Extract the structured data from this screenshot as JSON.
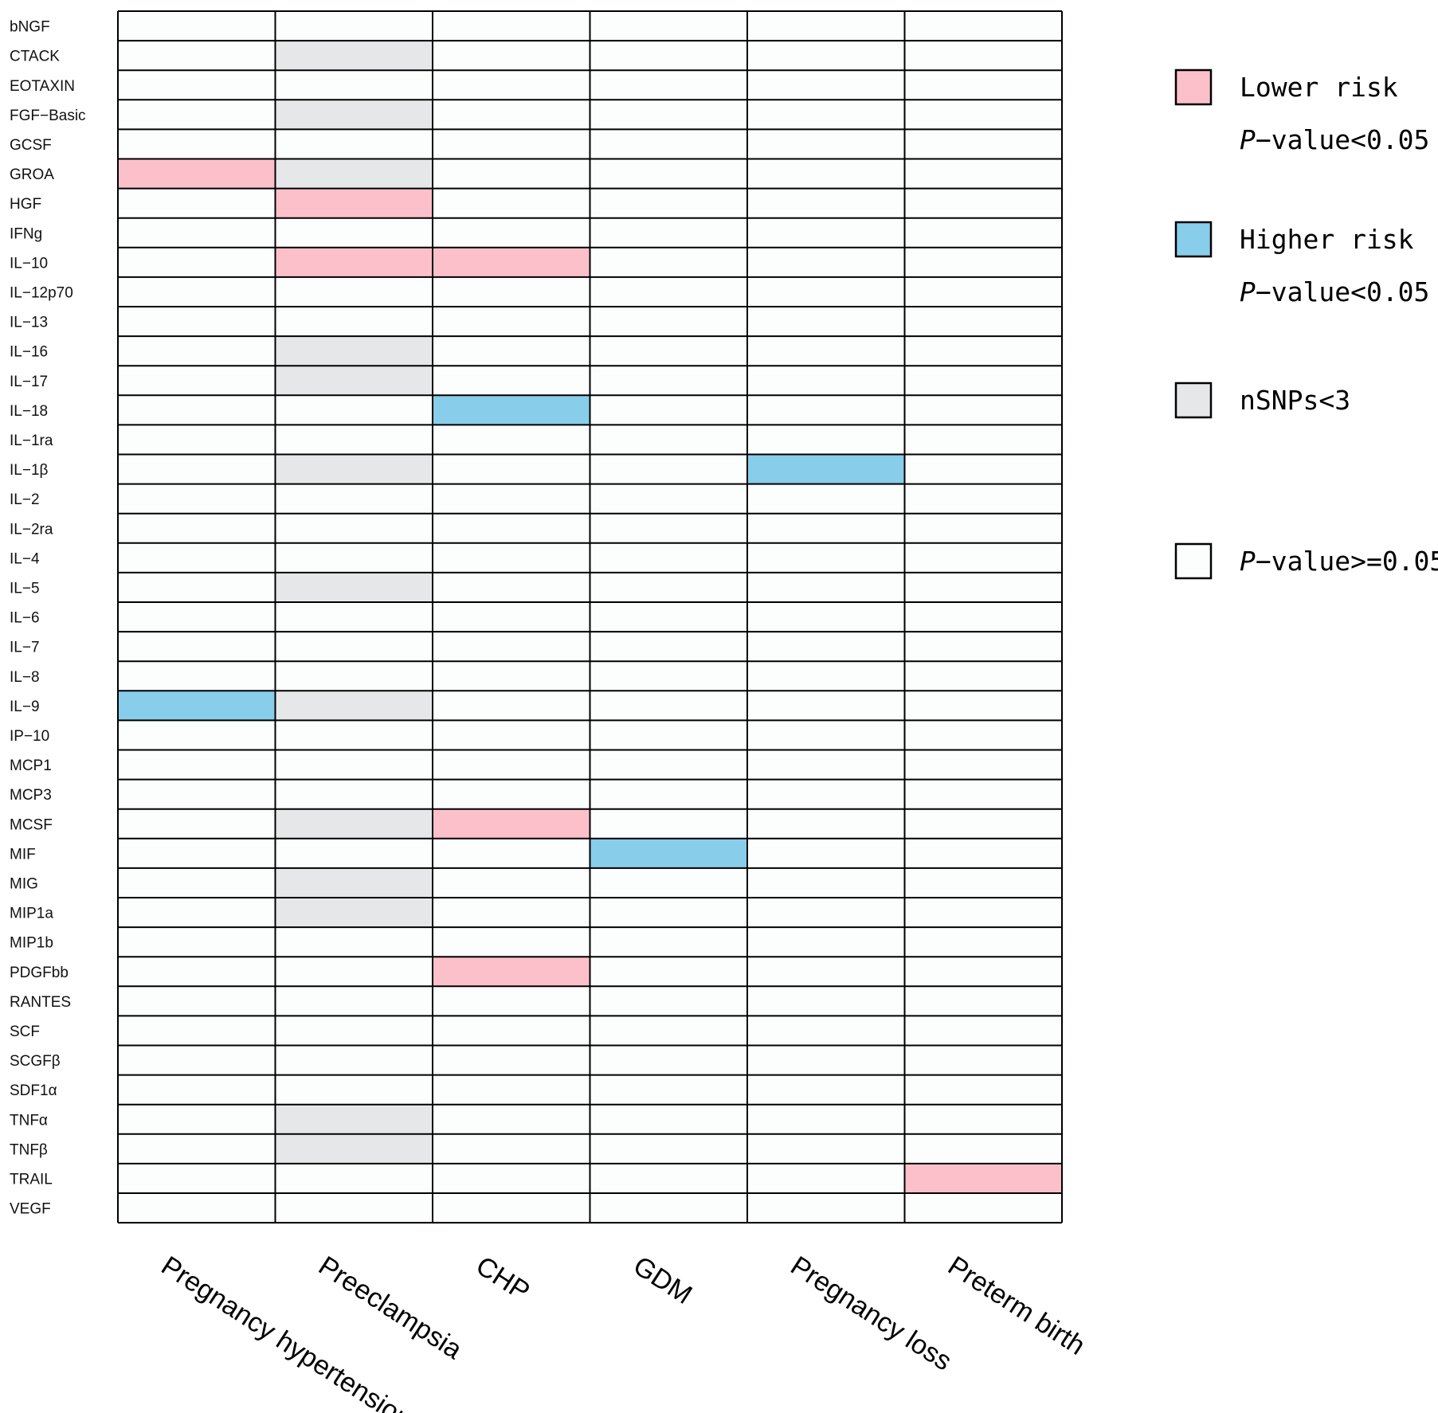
{
  "chart_data": {
    "type": "heatmap",
    "title": "",
    "columns": [
      "Pregnancy hypertension",
      "Preeclampsia",
      "CHP",
      "GDM",
      "Pregnancy loss",
      "Preterm birth"
    ],
    "rows": [
      "bNGF",
      "CTACK",
      "EOTAXIN",
      "FGF−Basic",
      "GCSF",
      "GROA",
      "HGF",
      "IFNg",
      "IL−10",
      "IL−12p70",
      "IL−13",
      "IL−16",
      "IL−17",
      "IL−18",
      "IL−1ra",
      "IL−1β",
      "IL−2",
      "IL−2ra",
      "IL−4",
      "IL−5",
      "IL−6",
      "IL−7",
      "IL−8",
      "IL−9",
      "IP−10",
      "MCP1",
      "MCP3",
      "MCSF",
      "MIF",
      "MIG",
      "MIP1a",
      "MIP1b",
      "PDGFbb",
      "RANTES",
      "SCF",
      "SCGFβ",
      "SDF1α",
      "TNFα",
      "TNFβ",
      "TRAIL",
      "VEGF"
    ],
    "category_codes": {
      "0": "P-value>=0.05",
      "1": "Lower risk P-value<0.05",
      "2": "Higher risk P-value<0.05",
      "3": "nSNPs<3"
    },
    "values": [
      [
        0,
        0,
        0,
        0,
        0,
        0
      ],
      [
        0,
        3,
        0,
        0,
        0,
        0
      ],
      [
        0,
        0,
        0,
        0,
        0,
        0
      ],
      [
        0,
        3,
        0,
        0,
        0,
        0
      ],
      [
        0,
        0,
        0,
        0,
        0,
        0
      ],
      [
        1,
        3,
        0,
        0,
        0,
        0
      ],
      [
        0,
        1,
        0,
        0,
        0,
        0
      ],
      [
        0,
        0,
        0,
        0,
        0,
        0
      ],
      [
        0,
        1,
        1,
        0,
        0,
        0
      ],
      [
        0,
        0,
        0,
        0,
        0,
        0
      ],
      [
        0,
        0,
        0,
        0,
        0,
        0
      ],
      [
        0,
        3,
        0,
        0,
        0,
        0
      ],
      [
        0,
        3,
        0,
        0,
        0,
        0
      ],
      [
        0,
        0,
        2,
        0,
        0,
        0
      ],
      [
        0,
        0,
        0,
        0,
        0,
        0
      ],
      [
        0,
        3,
        0,
        0,
        2,
        0
      ],
      [
        0,
        0,
        0,
        0,
        0,
        0
      ],
      [
        0,
        0,
        0,
        0,
        0,
        0
      ],
      [
        0,
        0,
        0,
        0,
        0,
        0
      ],
      [
        0,
        3,
        0,
        0,
        0,
        0
      ],
      [
        0,
        0,
        0,
        0,
        0,
        0
      ],
      [
        0,
        0,
        0,
        0,
        0,
        0
      ],
      [
        0,
        0,
        0,
        0,
        0,
        0
      ],
      [
        2,
        3,
        0,
        0,
        0,
        0
      ],
      [
        0,
        0,
        0,
        0,
        0,
        0
      ],
      [
        0,
        0,
        0,
        0,
        0,
        0
      ],
      [
        0,
        0,
        0,
        0,
        0,
        0
      ],
      [
        0,
        3,
        1,
        0,
        0,
        0
      ],
      [
        0,
        0,
        0,
        2,
        0,
        0
      ],
      [
        0,
        3,
        0,
        0,
        0,
        0
      ],
      [
        0,
        3,
        0,
        0,
        0,
        0
      ],
      [
        0,
        0,
        0,
        0,
        0,
        0
      ],
      [
        0,
        0,
        1,
        0,
        0,
        0
      ],
      [
        0,
        0,
        0,
        0,
        0,
        0
      ],
      [
        0,
        0,
        0,
        0,
        0,
        0
      ],
      [
        0,
        0,
        0,
        0,
        0,
        0
      ],
      [
        0,
        0,
        0,
        0,
        0,
        0
      ],
      [
        0,
        3,
        0,
        0,
        0,
        0
      ],
      [
        0,
        3,
        0,
        0,
        0,
        0
      ],
      [
        0,
        0,
        0,
        0,
        0,
        1
      ],
      [
        0,
        0,
        0,
        0,
        0,
        0
      ]
    ],
    "colors": {
      "0": "#fcfdfd",
      "1": "#fcc0cb",
      "2": "#88cdea",
      "3": "#e6e7e8"
    },
    "legend": [
      {
        "code": 1,
        "label": "Lower risk",
        "sublabel_prefix": "P",
        "sublabel_rest": "−value<0.05"
      },
      {
        "code": 2,
        "label": "Higher risk",
        "sublabel_prefix": "P",
        "sublabel_rest": "−value<0.05"
      },
      {
        "code": 3,
        "label": "nSNPs<3",
        "sublabel_prefix": "",
        "sublabel_rest": ""
      },
      {
        "code": 0,
        "label": "",
        "sublabel_prefix": "P",
        "sublabel_rest": "−value>=0.05"
      }
    ],
    "legend_position": "right"
  }
}
